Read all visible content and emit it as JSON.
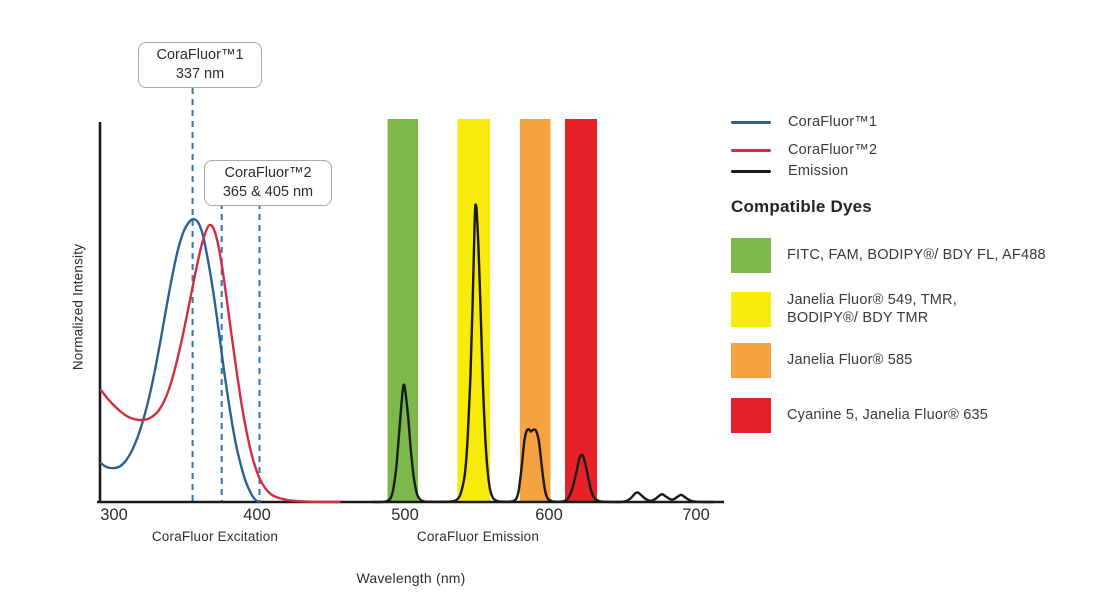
{
  "axes": {
    "y_label": "Normalized Intensity",
    "x_label": "Wavelength (nm)",
    "x_ticks": [
      "300",
      "400",
      "500",
      "600",
      "700"
    ],
    "x_section_labels": [
      "CoraFluor Excitation",
      "CoraFluor Emission"
    ]
  },
  "annotations": {
    "box1": {
      "title": "CoraFluor™1",
      "value": "337 nm"
    },
    "box2": {
      "title": "CoraFluor™2",
      "value": "365 & 405 nm"
    }
  },
  "legend": {
    "series": [
      {
        "label": "CoraFluor™1",
        "color": "#2d6090"
      },
      {
        "label": "CoraFluor™2",
        "color": "#d12e3f"
      },
      {
        "label": "Emission",
        "color": "#1a1a1a"
      }
    ],
    "dyes_heading": "Compatible Dyes",
    "dyes": [
      {
        "color": "#7cb84a",
        "label": "FITC, FAM, BODIPY®/ BDY FL, AF488"
      },
      {
        "color": "#f7eb0e",
        "label": "Janelia Fluor® 549, TMR,\nBODIPY®/ BDY TMR"
      },
      {
        "color": "#f5a340",
        "label": "Janelia Fluor® 585"
      },
      {
        "color": "#e62129",
        "label": "Cyanine 5, Janelia Fluor® 635"
      }
    ]
  },
  "chart_data": {
    "type": "line",
    "title": "CoraFluor excitation and emission spectra with compatible dye windows",
    "xlabel": "Wavelength (nm)",
    "ylabel": "Normalized Intensity",
    "xlim": [
      289,
      716
    ],
    "ylim": [
      0,
      1.3
    ],
    "x_ticks": [
      300,
      400,
      500,
      600,
      700
    ],
    "grid": false,
    "axis_color": "#1a1a1a",
    "marker_color": "#3e79ab",
    "marker_lines_nm": [
      354,
      374,
      400
    ],
    "excitation_maxima_labels_nm": {
      "CoraFluor1": 337,
      "CoraFluor2": [
        365,
        405
      ]
    },
    "bands": [
      {
        "name": "green",
        "color": "#7cb84a",
        "from_nm": 488,
        "to_nm": 509
      },
      {
        "name": "yellow",
        "color": "#f7eb0e",
        "from_nm": 536,
        "to_nm": 558.5
      },
      {
        "name": "orange",
        "color": "#f5a340",
        "from_nm": 579,
        "to_nm": 600
      },
      {
        "name": "red",
        "color": "#e62129",
        "from_nm": 610,
        "to_nm": 632
      }
    ],
    "series": [
      {
        "name": "CoraFluor™1",
        "color": "#2d6090",
        "points": [
          [
            291,
            0.131
          ],
          [
            294,
            0.12
          ],
          [
            297,
            0.115
          ],
          [
            300,
            0.114
          ],
          [
            304,
            0.12
          ],
          [
            308,
            0.138
          ],
          [
            312,
            0.17
          ],
          [
            316,
            0.215
          ],
          [
            320,
            0.275
          ],
          [
            324,
            0.35
          ],
          [
            328,
            0.44
          ],
          [
            332,
            0.545
          ],
          [
            336,
            0.655
          ],
          [
            340,
            0.76
          ],
          [
            344,
            0.85
          ],
          [
            348,
            0.912
          ],
          [
            352,
            0.945
          ],
          [
            355,
            0.952
          ],
          [
            358,
            0.94
          ],
          [
            361,
            0.9
          ],
          [
            364,
            0.83
          ],
          [
            368,
            0.715
          ],
          [
            372,
            0.575
          ],
          [
            376,
            0.43
          ],
          [
            380,
            0.3
          ],
          [
            384,
            0.19
          ],
          [
            388,
            0.11
          ],
          [
            391,
            0.063
          ],
          [
            394,
            0.03
          ],
          [
            396,
            0.014
          ],
          [
            398,
            0.004
          ],
          [
            400,
            0.0
          ]
        ]
      },
      {
        "name": "CoraFluor™2",
        "color": "#d12e3f",
        "points": [
          [
            291,
            0.377
          ],
          [
            295,
            0.352
          ],
          [
            299,
            0.33
          ],
          [
            303,
            0.311
          ],
          [
            307,
            0.295
          ],
          [
            311,
            0.284
          ],
          [
            315,
            0.278
          ],
          [
            319,
            0.276
          ],
          [
            323,
            0.279
          ],
          [
            327,
            0.29
          ],
          [
            331,
            0.31
          ],
          [
            335,
            0.345
          ],
          [
            339,
            0.398
          ],
          [
            343,
            0.47
          ],
          [
            347,
            0.555
          ],
          [
            351,
            0.65
          ],
          [
            355,
            0.748
          ],
          [
            359,
            0.84
          ],
          [
            362,
            0.895
          ],
          [
            365,
            0.93
          ],
          [
            368,
            0.925
          ],
          [
            371,
            0.88
          ],
          [
            374,
            0.8
          ],
          [
            377,
            0.7
          ],
          [
            380,
            0.59
          ],
          [
            384,
            0.45
          ],
          [
            388,
            0.32
          ],
          [
            392,
            0.215
          ],
          [
            396,
            0.135
          ],
          [
            400,
            0.08
          ],
          [
            404,
            0.046
          ],
          [
            408,
            0.026
          ],
          [
            413,
            0.014
          ],
          [
            419,
            0.007
          ],
          [
            426,
            0.003
          ],
          [
            435,
            0.001
          ],
          [
            446,
            0.0
          ],
          [
            455,
            0.0
          ]
        ]
      },
      {
        "name": "Emission",
        "color": "#1a1a1a",
        "points": [
          [
            478,
            0.0
          ],
          [
            483,
            0.0
          ],
          [
            487,
            0.002
          ],
          [
            490,
            0.012
          ],
          [
            492,
            0.045
          ],
          [
            494,
            0.115
          ],
          [
            496,
            0.235
          ],
          [
            498,
            0.355
          ],
          [
            499,
            0.393
          ],
          [
            500,
            0.38
          ],
          [
            502,
            0.295
          ],
          [
            504,
            0.175
          ],
          [
            506,
            0.085
          ],
          [
            508,
            0.032
          ],
          [
            510,
            0.01
          ],
          [
            513,
            0.002
          ],
          [
            518,
            0.001
          ],
          [
            526,
            0.001
          ],
          [
            532,
            0.002
          ],
          [
            535,
            0.006
          ],
          [
            538,
            0.025
          ],
          [
            541,
            0.09
          ],
          [
            543,
            0.21
          ],
          [
            545,
            0.43
          ],
          [
            546.5,
            0.68
          ],
          [
            548,
            0.96
          ],
          [
            548.7,
            1.0
          ],
          [
            549.5,
            0.96
          ],
          [
            551,
            0.79
          ],
          [
            552.5,
            0.56
          ],
          [
            554,
            0.34
          ],
          [
            556,
            0.15
          ],
          [
            558,
            0.055
          ],
          [
            560,
            0.018
          ],
          [
            563,
            0.004
          ],
          [
            568,
            0.001
          ],
          [
            573,
            0.002
          ],
          [
            576,
            0.008
          ],
          [
            578,
            0.035
          ],
          [
            580,
            0.11
          ],
          [
            582,
            0.205
          ],
          [
            583.5,
            0.238
          ],
          [
            585,
            0.245
          ],
          [
            586.5,
            0.237
          ],
          [
            588,
            0.243
          ],
          [
            590,
            0.24
          ],
          [
            592,
            0.205
          ],
          [
            594,
            0.12
          ],
          [
            596,
            0.045
          ],
          [
            598,
            0.012
          ],
          [
            601,
            0.003
          ],
          [
            605,
            0.001
          ],
          [
            609,
            0.003
          ],
          [
            612,
            0.012
          ],
          [
            615,
            0.045
          ],
          [
            618,
            0.105
          ],
          [
            620,
            0.148
          ],
          [
            622,
            0.158
          ],
          [
            624,
            0.128
          ],
          [
            626,
            0.08
          ],
          [
            628,
            0.038
          ],
          [
            630,
            0.014
          ],
          [
            633,
            0.004
          ],
          [
            637,
            0.001
          ],
          [
            645,
            0.0
          ],
          [
            651,
            0.002
          ],
          [
            655,
            0.012
          ],
          [
            658,
            0.028
          ],
          [
            660,
            0.032
          ],
          [
            663,
            0.02
          ],
          [
            666,
            0.008
          ],
          [
            669,
            0.004
          ],
          [
            672,
            0.01
          ],
          [
            675,
            0.022
          ],
          [
            677,
            0.026
          ],
          [
            680,
            0.016
          ],
          [
            683,
            0.008
          ],
          [
            685,
            0.01
          ],
          [
            688,
            0.02
          ],
          [
            690,
            0.024
          ],
          [
            693,
            0.014
          ],
          [
            696,
            0.005
          ],
          [
            700,
            0.001
          ],
          [
            706,
            0.0
          ],
          [
            712,
            0.0
          ]
        ]
      }
    ]
  }
}
